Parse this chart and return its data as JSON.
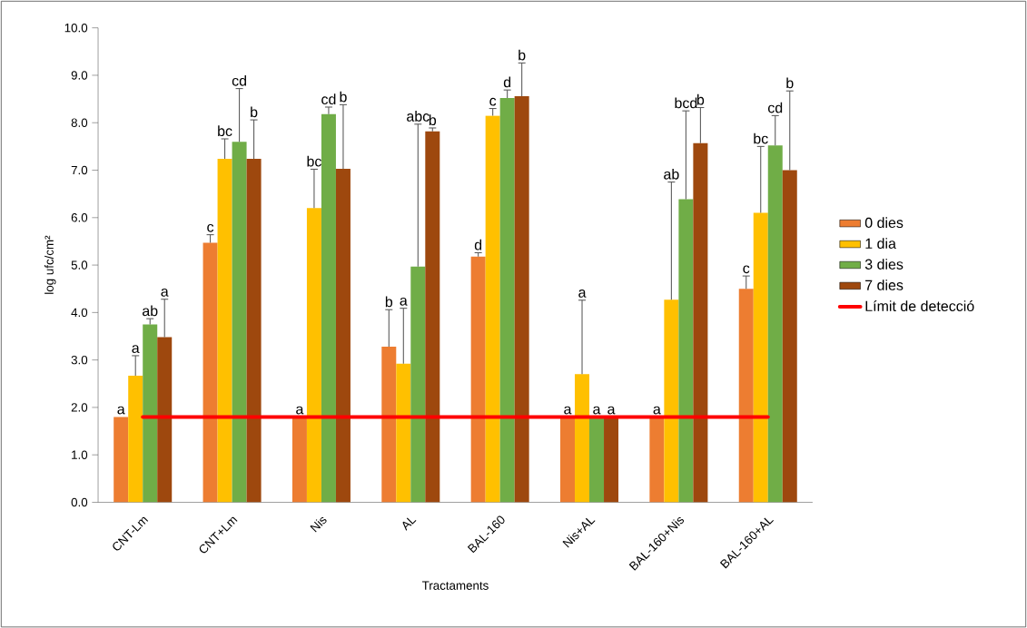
{
  "chart_data": {
    "type": "bar",
    "xlabel": "Tractaments",
    "ylabel": "log ufc/cm²",
    "categories": [
      "CNT-Lm",
      "CNT+Lm",
      "Nis",
      "AL",
      "BAL-160",
      "Nis+AL",
      "BAL-160+Nis",
      "BAL-160+AL"
    ],
    "ylim": [
      0,
      10
    ],
    "yticks": [
      {
        "value": 0,
        "label": "0.0"
      },
      {
        "value": 1,
        "label": "1.0"
      },
      {
        "value": 2,
        "label": "2.0"
      },
      {
        "value": 3,
        "label": "3.0"
      },
      {
        "value": 4,
        "label": "4.0"
      },
      {
        "value": 5,
        "label": "5.0"
      },
      {
        "value": 6,
        "label": "6.0"
      },
      {
        "value": 7,
        "label": "7.0"
      },
      {
        "value": 8,
        "label": "8.0"
      },
      {
        "value": 9,
        "label": "9.0"
      },
      {
        "value": 10,
        "label": "10.0"
      }
    ],
    "legend": "right",
    "series": [
      {
        "name": "0 dies",
        "color": "#ed7d31",
        "values": [
          1.8,
          5.47,
          1.8,
          3.28,
          5.18,
          1.8,
          1.8,
          4.5
        ],
        "errors": [
          null,
          0.17,
          null,
          0.78,
          0.08,
          null,
          null,
          0.27
        ]
      },
      {
        "name": "1 dia",
        "color": "#ffc000",
        "values": [
          2.67,
          7.24,
          6.2,
          2.92,
          8.15,
          2.7,
          4.27,
          6.1
        ],
        "errors": [
          0.42,
          0.42,
          0.82,
          1.17,
          0.15,
          1.56,
          2.48,
          1.4
        ]
      },
      {
        "name": "3 dies",
        "color": "#70ad47",
        "values": [
          3.75,
          7.6,
          8.18,
          4.97,
          8.52,
          1.8,
          6.39,
          7.52
        ],
        "errors": [
          0.12,
          1.12,
          0.15,
          3.0,
          0.17,
          null,
          1.86,
          0.63
        ]
      },
      {
        "name": "7 dies",
        "color": "#9e480e",
        "values": [
          3.48,
          7.24,
          7.03,
          7.82,
          8.56,
          1.8,
          7.57,
          7.0
        ],
        "errors": [
          0.8,
          0.82,
          1.35,
          0.07,
          0.7,
          null,
          0.75,
          1.67
        ]
      },
      {
        "name": "Límit de detecció",
        "type": "line",
        "color": "#ff0000",
        "values": [
          1.8,
          1.8,
          1.8,
          1.8,
          1.8,
          1.8,
          1.8,
          1.8
        ]
      }
    ],
    "annotations": [
      "a",
      "a",
      "ab",
      "a",
      "c",
      "bc",
      "cd",
      "b",
      "a",
      "bc",
      "cd",
      "b",
      "b",
      "a",
      "abc",
      "b",
      "d",
      "c",
      "d",
      "b",
      "a",
      "a",
      "a",
      "a",
      "a",
      "ab",
      "bcd",
      "b",
      "c",
      "bc",
      "cd",
      "b"
    ]
  }
}
